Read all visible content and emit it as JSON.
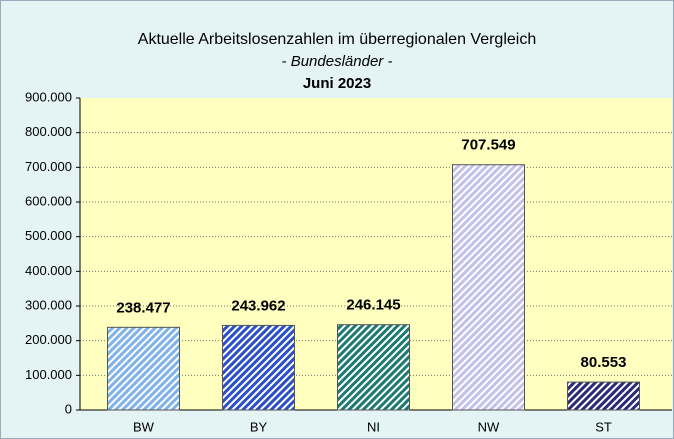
{
  "chart_data": {
    "type": "bar",
    "title": "Aktuelle Arbeitslosenzahlen im überregionalen Vergleich",
    "subtitle": "- Bundesländer -",
    "period": "Juni 2023",
    "categories": [
      "BW",
      "BY",
      "NI",
      "NW",
      "ST"
    ],
    "values": [
      238477,
      243962,
      246145,
      707549,
      80553
    ],
    "value_labels": [
      "238.477",
      "243.962",
      "246.145",
      "707.549",
      "80.553"
    ],
    "colors": [
      "#7fb2e8",
      "#2a4fc8",
      "#1d7a72",
      "#c4c0ec",
      "#2a2a78"
    ],
    "ylim": [
      0,
      900000
    ],
    "yticks": [
      0,
      {
        "value": 100000,
        "label": "100.000"
      },
      {
        "value": 200000,
        "label": "200.000"
      },
      {
        "value": 300000,
        "label": "300.000"
      },
      {
        "value": 400000,
        "label": "400.000"
      },
      {
        "value": 500000,
        "label": "500.000"
      },
      {
        "value": 600000,
        "label": "600.000"
      },
      {
        "value": 700000,
        "label": "700.000"
      },
      {
        "value": 800000,
        "label": "800.000"
      },
      {
        "value": 900000,
        "label": "900.000"
      }
    ],
    "grid": true
  }
}
